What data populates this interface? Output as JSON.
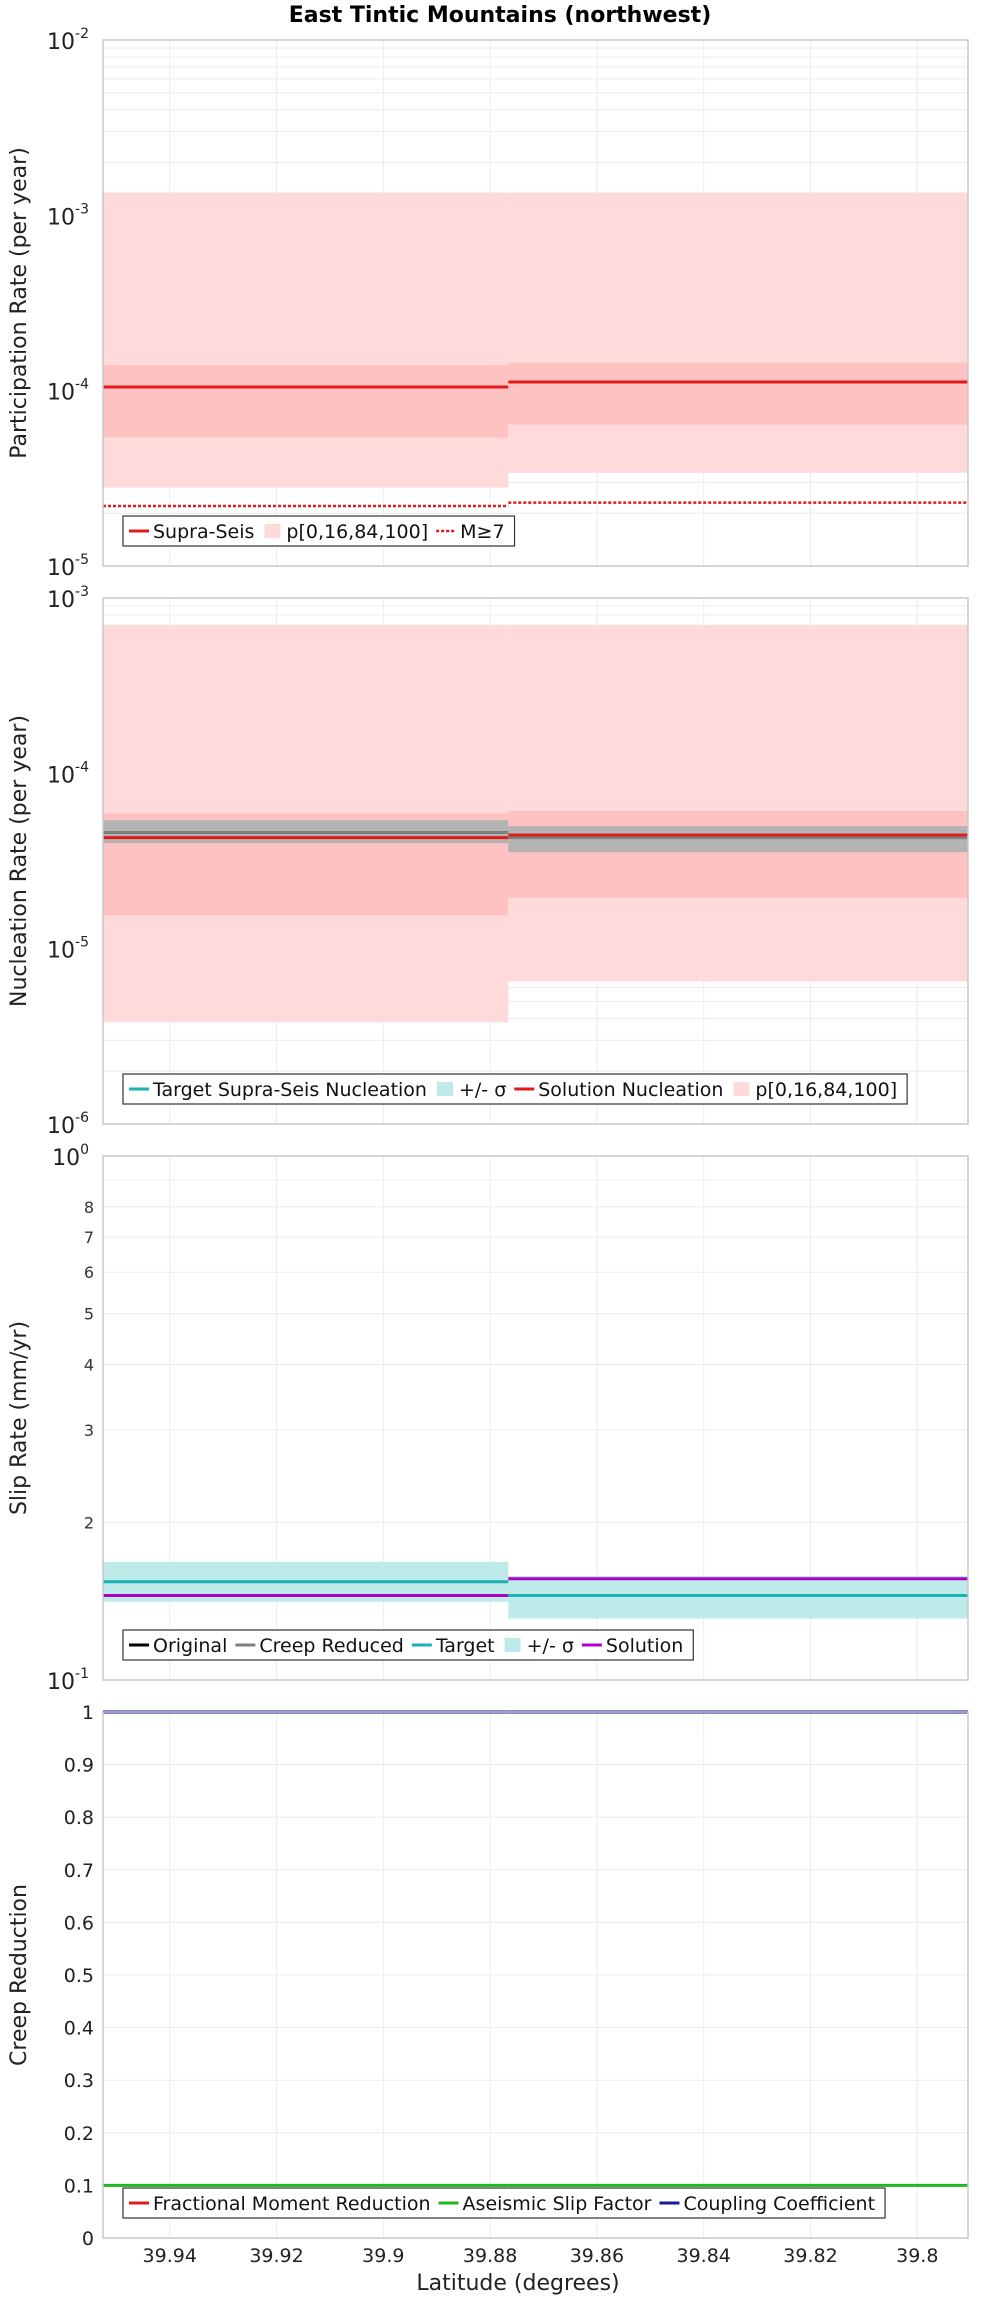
{
  "title": "East Tintic Mountains (northwest)",
  "x_axis": {
    "label": "Latitude (degrees)",
    "xlim": [
      39.9525,
      39.7905
    ],
    "ticks": [
      39.94,
      39.92,
      39.9,
      39.88,
      39.86,
      39.84,
      39.82,
      39.8
    ],
    "tick_labels": [
      "39.94",
      "39.92",
      "39.9",
      "39.88",
      "39.86",
      "39.84",
      "39.82",
      "39.8"
    ]
  },
  "colors": {
    "red": "#e31a1c",
    "pink_band": "#ffdada",
    "pink_band_dark": "#ffc2c2",
    "gray": "#7f7f7f",
    "gray_band": "#b3b3b3",
    "teal": "#1ab2b2",
    "teal_band": "#bfeaea",
    "purple": "#b000c8",
    "green": "#1db81d",
    "navy": "#1a1a9e",
    "grid": "#ececec",
    "frame": "#c8c8c8"
  },
  "chart_data": [
    {
      "type": "line",
      "id": "participation",
      "ylabel": "Participation Rate (per year)",
      "yscale": "log",
      "ylim": [
        1e-05,
        0.01
      ],
      "ytick_labels": [
        {
          "base": "10",
          "exp": "-5",
          "value": 1e-05
        },
        {
          "base": "10",
          "exp": "-4",
          "value": 0.0001
        },
        {
          "base": "10",
          "exp": "-3",
          "value": 0.001
        },
        {
          "base": "10",
          "exp": "-2",
          "value": 0.01
        }
      ],
      "sections": [
        {
          "lat_start": 39.9525,
          "lat_end": 39.8766
        },
        {
          "lat_start": 39.8766,
          "lat_end": 39.7905
        }
      ],
      "bands": [
        {
          "name": "p[0,100]",
          "color_key": "pink_band",
          "values": [
            [
              2.8e-05,
              0.00135
            ],
            [
              3.4e-05,
              0.00135
            ]
          ]
        },
        {
          "name": "p[16,84]",
          "color_key": "pink_band_dark",
          "values": [
            [
              5.4e-05,
              0.00014
            ],
            [
              6.4e-05,
              0.000145
            ]
          ]
        }
      ],
      "series": [
        {
          "name": "Supra-Seis",
          "style": "solid",
          "color_key": "red",
          "values": [
            0.000105,
            0.000112
          ]
        },
        {
          "name": "M≥7",
          "style": "dotted",
          "color_key": "red",
          "values": [
            2.2e-05,
            2.3e-05
          ]
        }
      ],
      "legend": {
        "position": "bottom-left",
        "items": [
          {
            "label": "Supra-Seis",
            "kind": "line",
            "color_key": "red"
          },
          {
            "label": "p[0,16,84,100]",
            "kind": "box",
            "color_key": "pink_band"
          },
          {
            "label": "M≥7",
            "kind": "dotted",
            "color_key": "red"
          }
        ]
      }
    },
    {
      "type": "line",
      "id": "nucleation",
      "ylabel": "Nucleation Rate (per year)",
      "yscale": "log",
      "ylim": [
        1e-06,
        0.001
      ],
      "ytick_labels": [
        {
          "base": "10",
          "exp": "-6",
          "value": 1e-06
        },
        {
          "base": "10",
          "exp": "-5",
          "value": 1e-05
        },
        {
          "base": "10",
          "exp": "-4",
          "value": 0.0001
        },
        {
          "base": "10",
          "exp": "-3",
          "value": 0.001
        }
      ],
      "sections": [
        {
          "lat_start": 39.9525,
          "lat_end": 39.8766
        },
        {
          "lat_start": 39.8766,
          "lat_end": 39.7905
        }
      ],
      "bands": [
        {
          "name": "p[0,100]",
          "color_key": "pink_band",
          "values": [
            [
              3.8e-06,
              0.0007
            ],
            [
              6.5e-06,
              0.0007
            ]
          ]
        },
        {
          "name": "p[16,84]",
          "color_key": "pink_band_dark",
          "values": [
            [
              1.55e-05,
              5.9e-05
            ],
            [
              1.95e-05,
              6.1e-05
            ]
          ]
        },
        {
          "name": "+/- σ",
          "color_key": "gray_band",
          "values": [
            [
              4e-05,
              5.4e-05
            ],
            [
              3.55e-05,
              5e-05
            ]
          ]
        }
      ],
      "series": [
        {
          "name": "Target Supra-Seis Nucleation",
          "style": "solid",
          "color_key": "gray",
          "values": [
            4.6e-05,
            4.3e-05
          ]
        },
        {
          "name": "Solution Nucleation",
          "style": "solid",
          "color_key": "red",
          "values": [
            4.3e-05,
            4.45e-05
          ]
        }
      ],
      "legend": {
        "position": "bottom-left",
        "items": [
          {
            "label": "Target Supra-Seis Nucleation",
            "kind": "line",
            "color_key": "teal"
          },
          {
            "label": "+/- σ",
            "kind": "box",
            "color_key": "teal_band"
          },
          {
            "label": "Solution Nucleation",
            "kind": "line",
            "color_key": "red"
          },
          {
            "label": "p[0,16,84,100]",
            "kind": "box",
            "color_key": "pink_band"
          }
        ]
      }
    },
    {
      "type": "line",
      "id": "slip",
      "ylabel": "Slip Rate (mm/yr)",
      "yscale": "log",
      "ylim": [
        0.1,
        1.0
      ],
      "ytick_labels": [
        {
          "base": "10",
          "exp": "-1",
          "value": 0.1
        },
        {
          "base": "10",
          "exp": "0",
          "value": 1.0
        }
      ],
      "minor_ticks": [
        {
          "label": "2",
          "value": 0.2
        },
        {
          "label": "3",
          "value": 0.3
        },
        {
          "label": "4",
          "value": 0.4
        },
        {
          "label": "5",
          "value": 0.5
        },
        {
          "label": "6",
          "value": 0.6
        },
        {
          "label": "7",
          "value": 0.7
        },
        {
          "label": "8",
          "value": 0.8
        }
      ],
      "sections": [
        {
          "lat_start": 39.9525,
          "lat_end": 39.8766
        },
        {
          "lat_start": 39.8766,
          "lat_end": 39.7905
        }
      ],
      "bands": [
        {
          "name": "+/- σ",
          "color_key": "teal_band",
          "values": [
            [
              0.141,
              0.168
            ],
            [
              0.131,
              0.158
            ]
          ]
        }
      ],
      "series": [
        {
          "name": "Target",
          "style": "solid",
          "color_key": "teal",
          "values": [
            0.154,
            0.145
          ]
        },
        {
          "name": "Solution",
          "style": "solid",
          "color_key": "purple",
          "values": [
            0.145,
            0.156
          ]
        }
      ],
      "legend": {
        "position": "bottom-left",
        "items": [
          {
            "label": "Original",
            "kind": "line",
            "color_key": "black"
          },
          {
            "label": "Creep Reduced",
            "kind": "line",
            "color_key": "gray"
          },
          {
            "label": "Target",
            "kind": "line",
            "color_key": "teal"
          },
          {
            "label": "+/- σ",
            "kind": "box",
            "color_key": "teal_band"
          },
          {
            "label": "Solution",
            "kind": "line",
            "color_key": "purple"
          }
        ]
      }
    },
    {
      "type": "line",
      "id": "creep",
      "ylabel": "Creep Reduction",
      "yscale": "linear",
      "ylim": [
        0,
        1
      ],
      "ytick_values": [
        0,
        0.1,
        0.2,
        0.3,
        0.4,
        0.5,
        0.6,
        0.7,
        0.8,
        0.9,
        1
      ],
      "ytick_labels": [
        "0",
        "0.1",
        "0.2",
        "0.3",
        "0.4",
        "0.5",
        "0.6",
        "0.7",
        "0.8",
        "0.9",
        "1"
      ],
      "sections": [
        {
          "lat_start": 39.9525,
          "lat_end": 39.8766
        },
        {
          "lat_start": 39.8766,
          "lat_end": 39.7905
        }
      ],
      "bands": [],
      "series": [
        {
          "name": "Aseismic Slip Factor",
          "style": "solid",
          "color_key": "green",
          "values": [
            0.1,
            0.1
          ]
        },
        {
          "name": "Coupling Coefficient",
          "style": "solid",
          "color_key": "navy",
          "values": [
            1.0,
            1.0
          ]
        }
      ],
      "legend": {
        "position": "bottom-left",
        "items": [
          {
            "label": "Fractional Moment Reduction",
            "kind": "line",
            "color_key": "red"
          },
          {
            "label": "Aseismic Slip Factor",
            "kind": "line",
            "color_key": "green"
          },
          {
            "label": "Coupling Coefficient",
            "kind": "line",
            "color_key": "navy"
          }
        ]
      }
    }
  ]
}
